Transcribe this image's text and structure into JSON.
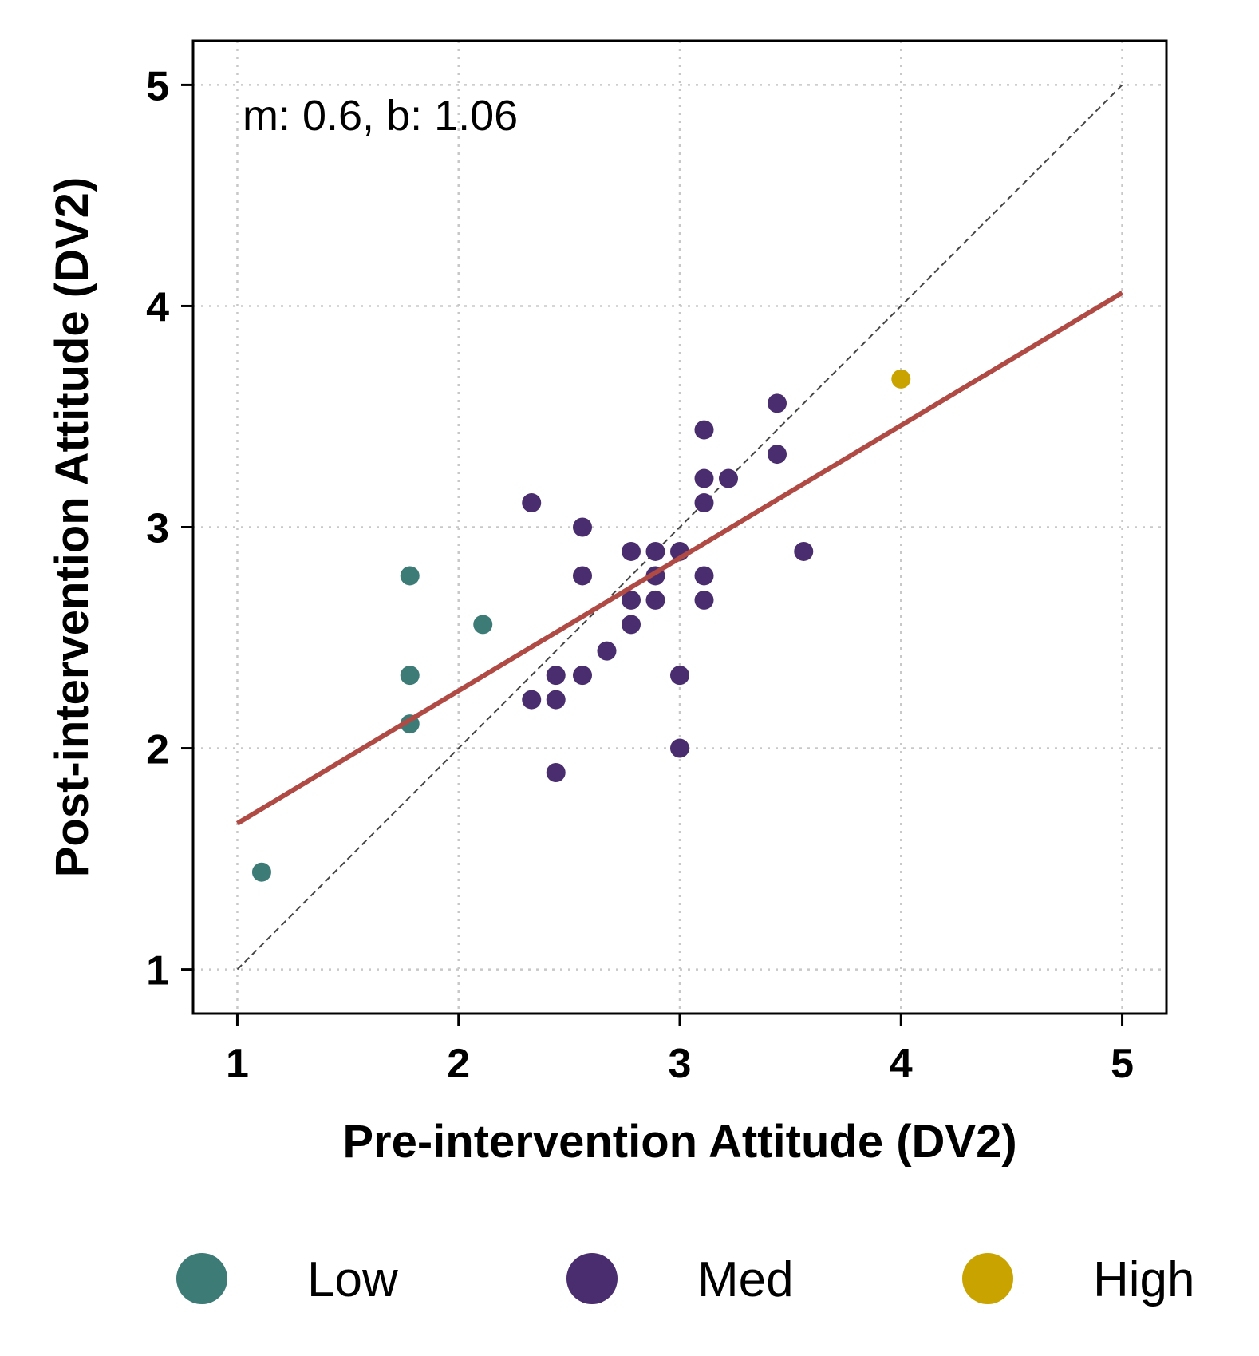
{
  "chart_data": {
    "type": "scatter",
    "title": "",
    "xlabel": "Pre-intervention Attitude (DV2)",
    "ylabel": "Post-intervention Attitude (DV2)",
    "xlim": [
      0.8,
      5.2
    ],
    "ylim": [
      0.8,
      5.2
    ],
    "xticks": [
      1,
      2,
      3,
      4,
      5
    ],
    "yticks": [
      1,
      2,
      3,
      4,
      5
    ],
    "grid": true,
    "annotation": "m: 0.6, b: 1.06",
    "fit_line": {
      "slope": 0.6,
      "intercept": 1.06,
      "x_range": [
        1,
        5
      ],
      "color": "#b04a44"
    },
    "identity_line": {
      "x_range": [
        1,
        5
      ],
      "color": "#444444"
    },
    "legend_position": "bottom",
    "series": [
      {
        "name": "Low",
        "color": "#3d7b77",
        "points": [
          [
            1.11,
            1.44
          ],
          [
            1.78,
            2.78
          ],
          [
            2.11,
            2.56
          ],
          [
            1.78,
            2.33
          ],
          [
            1.78,
            2.11
          ]
        ]
      },
      {
        "name": "Med",
        "color": "#4a2d6e",
        "points": [
          [
            2.33,
            3.11
          ],
          [
            2.56,
            3.0
          ],
          [
            2.56,
            2.78
          ],
          [
            2.78,
            2.89
          ],
          [
            2.89,
            2.89
          ],
          [
            3.0,
            2.89
          ],
          [
            2.89,
            2.78
          ],
          [
            2.78,
            2.67
          ],
          [
            2.89,
            2.67
          ],
          [
            2.78,
            2.56
          ],
          [
            2.67,
            2.44
          ],
          [
            2.44,
            2.33
          ],
          [
            2.56,
            2.33
          ],
          [
            2.33,
            2.22
          ],
          [
            2.44,
            2.22
          ],
          [
            2.44,
            1.89
          ],
          [
            3.0,
            2.33
          ],
          [
            3.0,
            2.0
          ],
          [
            3.11,
            3.44
          ],
          [
            3.11,
            3.22
          ],
          [
            3.22,
            3.22
          ],
          [
            3.11,
            3.11
          ],
          [
            3.11,
            2.78
          ],
          [
            3.11,
            2.67
          ],
          [
            3.44,
            3.56
          ],
          [
            3.44,
            3.33
          ],
          [
            3.56,
            2.89
          ]
        ]
      },
      {
        "name": "High",
        "color": "#c9a400",
        "points": [
          [
            4.0,
            3.67
          ]
        ]
      }
    ]
  }
}
